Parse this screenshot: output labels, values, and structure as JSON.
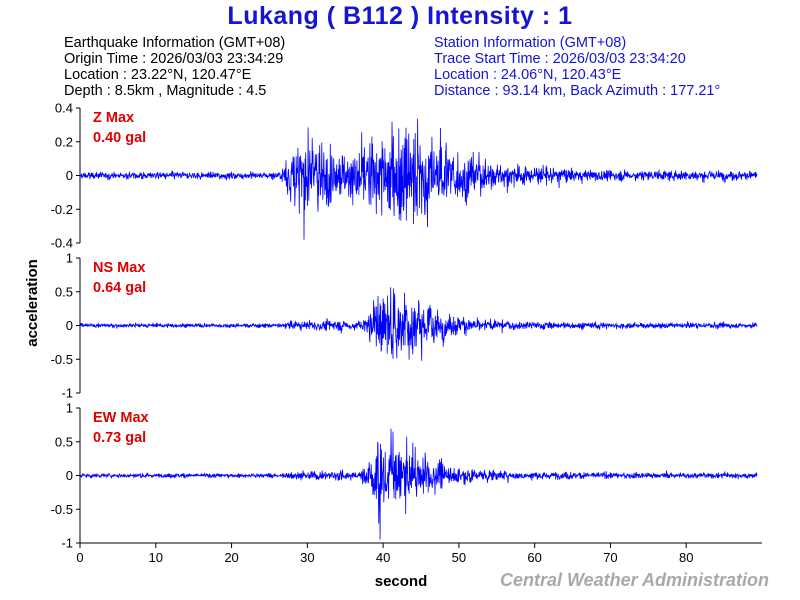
{
  "title": "Lukang ( B112 ) Intensity : 1",
  "earthquake_info": {
    "heading": "Earthquake Information (GMT+08)",
    "origin_time": "Origin Time : 2026/03/03 23:34:29",
    "location": "Location : 23.22°N, 120.47°E",
    "depth_magnitude": "Depth : 8.5km , Magnitude : 4.5"
  },
  "station_info": {
    "heading": "Station Information (GMT+08)",
    "trace_start": "Trace Start Time : 2026/03/03 23:34:20",
    "location": "Location : 24.06°N, 120.43°E",
    "distance_azimuth": "Distance : 93.14 km, Back Azimuth : 177.21°"
  },
  "credit": "Central Weather Administration",
  "colors": {
    "title": "#1414d2",
    "trace": "#0000ff",
    "max_label": "#e00000",
    "station_text": "#1414d2",
    "credit": "#a9a9a9"
  },
  "chart_data": {
    "type": "line",
    "xlabel": "second",
    "ylabel": "acceleration",
    "xlim": [
      0,
      90
    ],
    "xticks": [
      "0",
      "10",
      "20",
      "30",
      "40",
      "50",
      "60",
      "70",
      "80"
    ],
    "panels": [
      {
        "id": "z",
        "max_label": "Z Max",
        "max_value": "0.40 gal",
        "ylim": [
          -0.4,
          0.4
        ],
        "yticks": [
          "0.4",
          "0.2",
          "0",
          "-0.2",
          "-0.4"
        ],
        "noise_level": 0.008,
        "envelope": [
          [
            0,
            0.012
          ],
          [
            26.5,
            0.012
          ],
          [
            27.5,
            0.12
          ],
          [
            29.0,
            0.2
          ],
          [
            32.0,
            0.16
          ],
          [
            35.0,
            0.12
          ],
          [
            38.0,
            0.18
          ],
          [
            41.0,
            0.24
          ],
          [
            43.0,
            0.28
          ],
          [
            45.0,
            0.26
          ],
          [
            48.0,
            0.18
          ],
          [
            52.0,
            0.1
          ],
          [
            58.0,
            0.05
          ],
          [
            65.0,
            0.03
          ],
          [
            75.0,
            0.022
          ],
          [
            89.0,
            0.02
          ]
        ]
      },
      {
        "id": "ns",
        "max_label": "NS Max",
        "max_value": "0.64 gal",
        "ylim": [
          -1,
          1
        ],
        "yticks": [
          "1",
          "0.5",
          "0",
          "-0.5",
          "-1"
        ],
        "noise_level": 0.012,
        "envelope": [
          [
            0,
            0.015
          ],
          [
            26.0,
            0.018
          ],
          [
            28.0,
            0.05
          ],
          [
            33.0,
            0.07
          ],
          [
            37.0,
            0.06
          ],
          [
            39.5,
            0.38
          ],
          [
            41.0,
            0.45
          ],
          [
            43.0,
            0.45
          ],
          [
            45.0,
            0.35
          ],
          [
            48.0,
            0.18
          ],
          [
            52.0,
            0.08
          ],
          [
            58.0,
            0.05
          ],
          [
            65.0,
            0.04
          ],
          [
            75.0,
            0.03
          ],
          [
            89.0,
            0.03
          ]
        ]
      },
      {
        "id": "ew",
        "max_label": "EW Max",
        "max_value": "0.73 gal",
        "ylim": [
          -1,
          1
        ],
        "yticks": [
          "1",
          "0.5",
          "0",
          "-0.5",
          "-1"
        ],
        "noise_level": 0.012,
        "envelope": [
          [
            0,
            0.015
          ],
          [
            26.0,
            0.018
          ],
          [
            28.0,
            0.05
          ],
          [
            33.0,
            0.06
          ],
          [
            37.0,
            0.05
          ],
          [
            39.5,
            0.45
          ],
          [
            41.0,
            0.5
          ],
          [
            43.0,
            0.38
          ],
          [
            45.0,
            0.32
          ],
          [
            48.0,
            0.16
          ],
          [
            52.0,
            0.08
          ],
          [
            58.0,
            0.05
          ],
          [
            65.0,
            0.04
          ],
          [
            75.0,
            0.03
          ],
          [
            89.0,
            0.03
          ]
        ]
      }
    ]
  }
}
